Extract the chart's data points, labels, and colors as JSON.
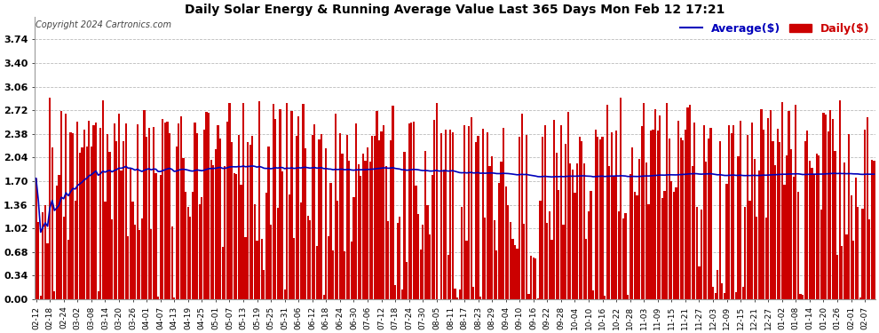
{
  "title": "Daily Solar Energy & Running Average Value Last 365 Days Mon Feb 12 17:21",
  "title_fontsize": 10,
  "copyright_text": "Copyright 2024 Cartronics.com",
  "legend_avg": "Average($)",
  "legend_daily": "Daily($)",
  "bar_color": "#cc0000",
  "avg_color": "#0000bb",
  "background_color": "#ffffff",
  "grid_color": "#bbbbbb",
  "ymin": 0.0,
  "ymax": 4.06,
  "ytick_step": 0.34,
  "fig_width": 9.9,
  "fig_height": 3.75,
  "dpi": 100
}
